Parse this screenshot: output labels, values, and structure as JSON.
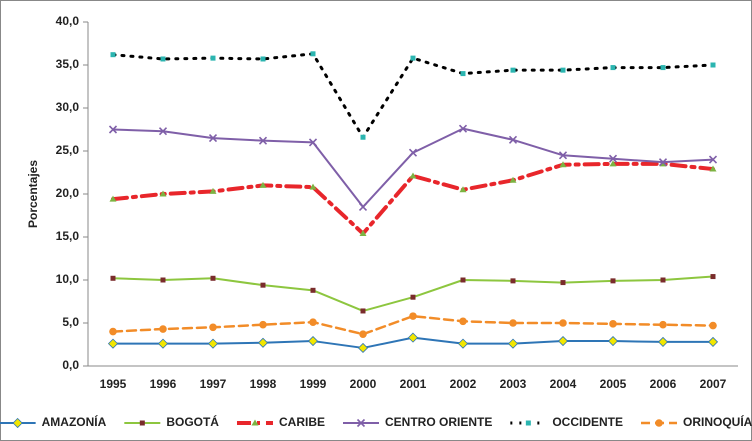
{
  "chart_data": {
    "type": "line",
    "y_label": "Porcentajes",
    "categories": [
      "1995",
      "1996",
      "1997",
      "1998",
      "1999",
      "2000",
      "2001",
      "2002",
      "2003",
      "2004",
      "2005",
      "2006",
      "2007"
    ],
    "ylim": [
      0,
      40
    ],
    "yticks": [
      {
        "value": 0,
        "label": "0,0"
      },
      {
        "value": 5,
        "label": "5,0"
      },
      {
        "value": 10,
        "label": "10,0"
      },
      {
        "value": 15,
        "label": "15,0"
      },
      {
        "value": 20,
        "label": "20,0"
      },
      {
        "value": 25,
        "label": "25,0"
      },
      {
        "value": 30,
        "label": "30,0"
      },
      {
        "value": 35,
        "label": "35,0"
      },
      {
        "value": 40,
        "label": "40,0"
      }
    ],
    "grid": false,
    "legend": "bottom",
    "series": [
      {
        "name": "AMAZONÍA",
        "color": "#2e75b6",
        "marker": "diamond",
        "marker_color": "#f2e600",
        "line_style": "solid",
        "values": [
          2.6,
          2.6,
          2.6,
          2.7,
          2.9,
          2.1,
          3.3,
          2.6,
          2.6,
          2.9,
          2.9,
          2.8,
          2.8
        ]
      },
      {
        "name": "BOGOTÁ",
        "color": "#8dc63f",
        "marker": "square",
        "marker_color": "#7a2c2c",
        "line_style": "solid",
        "values": [
          10.2,
          10.0,
          10.2,
          9.4,
          8.8,
          6.4,
          8.0,
          10.0,
          9.9,
          9.7,
          9.9,
          10.0,
          10.4
        ]
      },
      {
        "name": "CARIBE",
        "color": "#e8262b",
        "marker": "triangle",
        "marker_color": "#7cb342",
        "line_style": "dashdot",
        "values": [
          19.4,
          20.0,
          20.3,
          21.0,
          20.8,
          15.4,
          22.1,
          20.5,
          21.6,
          23.4,
          23.5,
          23.5,
          22.9
        ]
      },
      {
        "name": "CENTRO ORIENTE",
        "color": "#7f5fa8",
        "marker": "x",
        "marker_color": "#7f5fa8",
        "line_style": "solid",
        "values": [
          27.5,
          27.3,
          26.5,
          26.2,
          26.0,
          18.5,
          24.8,
          27.6,
          26.3,
          24.5,
          24.1,
          23.7,
          24.0
        ]
      },
      {
        "name": "OCCIDENTE",
        "color": "#000000",
        "marker": "square",
        "marker_color": "#2bb5b0",
        "line_style": "dotted",
        "values": [
          36.2,
          35.7,
          35.8,
          35.7,
          36.3,
          26.6,
          35.8,
          34.0,
          34.4,
          34.4,
          34.7,
          34.7,
          35.0
        ]
      },
      {
        "name": "ORINOQUÍA",
        "color": "#f28c28",
        "marker": "circle",
        "marker_color": "#f28c28",
        "line_style": "dashed",
        "values": [
          4.0,
          4.3,
          4.5,
          4.8,
          5.1,
          3.7,
          5.8,
          5.2,
          5.0,
          5.0,
          4.9,
          4.8,
          4.7
        ]
      }
    ]
  }
}
